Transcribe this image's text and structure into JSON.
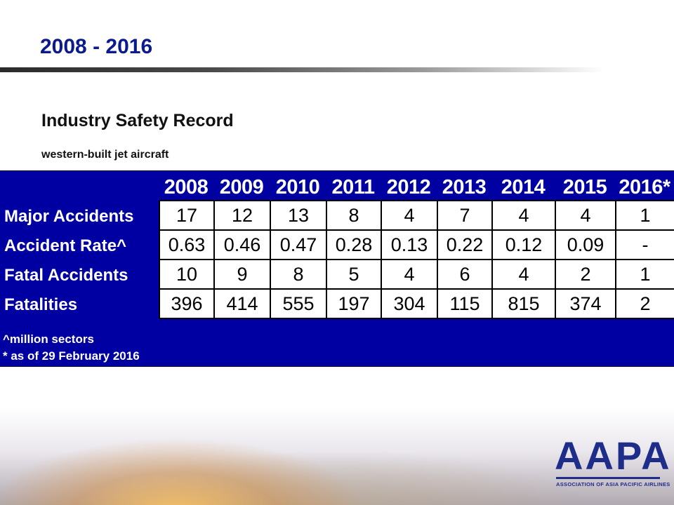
{
  "slide": {
    "title": "2008 - 2016",
    "subtitle": "Industry Safety Record",
    "subtitle_2": "western-built jet aircraft"
  },
  "table": {
    "years": [
      "2008",
      "2009",
      "2010",
      "2011",
      "2012",
      "2013",
      "2014",
      "2015",
      "2016*"
    ],
    "rows": [
      {
        "label": "Major Accidents",
        "values": [
          "17",
          "12",
          "13",
          "8",
          "4",
          "7",
          "4",
          "4",
          "1"
        ]
      },
      {
        "label": "Accident Rate^",
        "values": [
          "0.63",
          "0.46",
          "0.47",
          "0.28",
          "0.13",
          "0.22",
          "0.12",
          "0.09",
          "-"
        ]
      },
      {
        "label": "Fatal Accidents",
        "values": [
          "10",
          "9",
          "8",
          "5",
          "4",
          "6",
          "4",
          "2",
          "1"
        ]
      },
      {
        "label": "Fatalities",
        "values": [
          "396",
          "414",
          "555",
          "197",
          "304",
          "115",
          "815",
          "374",
          "2"
        ]
      }
    ],
    "footnotes": [
      "^million sectors",
      "* as of 29 February 2016"
    ]
  },
  "logo": {
    "name": "AAPA",
    "full_name": "ASSOCIATION OF ASIA PACIFIC AIRLINES"
  },
  "colors": {
    "panel_blue": "#0000a2",
    "title_blue": "#0b1a8c",
    "logo_blue": "#1e2c8a"
  }
}
